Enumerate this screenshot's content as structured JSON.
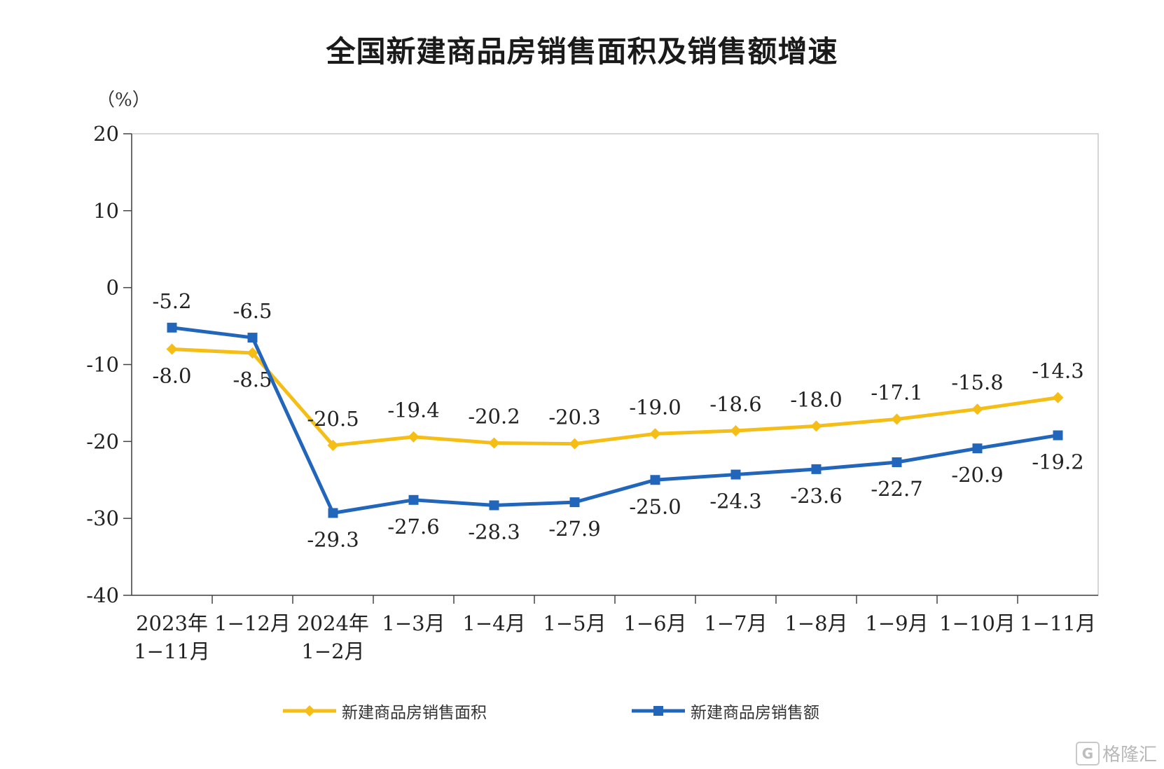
{
  "chart_data": {
    "type": "line",
    "title": "全国新建商品房销售面积及销售额增速",
    "unit_label": "（%）",
    "categories": [
      [
        "2023年",
        "1−11月"
      ],
      [
        "1−12月"
      ],
      [
        "2024年",
        "1−2月"
      ],
      [
        "1−3月"
      ],
      [
        "1−4月"
      ],
      [
        "1−5月"
      ],
      [
        "1−6月"
      ],
      [
        "1−7月"
      ],
      [
        "1−8月"
      ],
      [
        "1−9月"
      ],
      [
        "1−10月"
      ],
      [
        "1−11月"
      ]
    ],
    "ylim": [
      -40,
      20
    ],
    "yticks": [
      20,
      10,
      0,
      -10,
      -20,
      -30,
      -40
    ],
    "ytick_labels": [
      "20",
      "10",
      "0",
      "-10",
      "-20",
      "-30",
      "-40"
    ],
    "grid": false,
    "legend_position": "bottom",
    "series": [
      {
        "name": "新建商品房销售面积",
        "color": "#F5BE16",
        "marker": "diamond",
        "values": [
          -8.0,
          -8.5,
          -20.5,
          -19.4,
          -20.2,
          -20.3,
          -19.0,
          -18.6,
          -18.0,
          -17.1,
          -15.8,
          -14.3
        ],
        "labels": [
          "-8.0",
          "-8.5",
          "-20.5",
          "-19.4",
          "-20.2",
          "-20.3",
          "-19.0",
          "-18.6",
          "-18.0",
          "-17.1",
          "-15.8",
          "-14.3"
        ],
        "label_side": [
          "below",
          "below",
          "above",
          "above",
          "above",
          "above",
          "above",
          "above",
          "above",
          "above",
          "above",
          "above"
        ]
      },
      {
        "name": "新建商品房销售额",
        "color": "#2266BB",
        "marker": "square",
        "values": [
          -5.2,
          -6.5,
          -29.3,
          -27.6,
          -28.3,
          -27.9,
          -25.0,
          -24.3,
          -23.6,
          -22.7,
          -20.9,
          -19.2
        ],
        "labels": [
          "-5.2",
          "-6.5",
          "-29.3",
          "-27.6",
          "-28.3",
          "-27.9",
          "-25.0",
          "-24.3",
          "-23.6",
          "-22.7",
          "-20.9",
          "-19.2"
        ],
        "label_side": [
          "above",
          "above",
          "below",
          "below",
          "below",
          "below",
          "below",
          "below",
          "below",
          "below",
          "below",
          "below"
        ]
      }
    ]
  },
  "watermark": {
    "mark": "G",
    "text": "格隆汇"
  }
}
